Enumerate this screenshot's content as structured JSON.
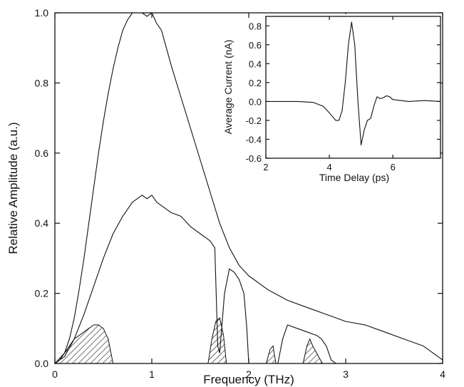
{
  "chart_data": [
    {
      "type": "line",
      "panel": "main",
      "xlabel": "Frequency (THz)",
      "ylabel": "Relative Amplitude (a.u.)",
      "xlim": [
        0,
        4
      ],
      "ylim": [
        0,
        1.0
      ],
      "xticks": [
        0,
        1,
        2,
        3,
        4
      ],
      "xtick_labels": [
        "0",
        "1",
        "2",
        "3",
        "4"
      ],
      "yticks": [
        0.0,
        0.2,
        0.4,
        0.6,
        0.8,
        1.0
      ],
      "ytick_labels": [
        "0.0",
        "0.2",
        "0.4",
        "0.6",
        "0.8",
        "1.0"
      ],
      "grid": false,
      "series": [
        {
          "style": "solid",
          "x": [
            0,
            0.05,
            0.1,
            0.15,
            0.2,
            0.25,
            0.3,
            0.35,
            0.4,
            0.45,
            0.5,
            0.55,
            0.6,
            0.65,
            0.7,
            0.75,
            0.8,
            0.85,
            0.9,
            0.95,
            1.0,
            1.05,
            1.1,
            1.15,
            1.2,
            1.3,
            1.4,
            1.5,
            1.6,
            1.7,
            1.8,
            1.9,
            2.0,
            2.2,
            2.4,
            2.6,
            2.8,
            3.0,
            3.2,
            3.4,
            3.6,
            3.8,
            3.9,
            4.0
          ],
          "y": [
            0.0,
            0.01,
            0.03,
            0.07,
            0.13,
            0.21,
            0.3,
            0.4,
            0.5,
            0.6,
            0.69,
            0.77,
            0.84,
            0.9,
            0.95,
            0.98,
            1.0,
            1.0,
            1.01,
            0.99,
            1.0,
            0.97,
            0.95,
            0.9,
            0.85,
            0.76,
            0.67,
            0.58,
            0.49,
            0.4,
            0.33,
            0.28,
            0.25,
            0.21,
            0.18,
            0.16,
            0.14,
            0.12,
            0.11,
            0.09,
            0.07,
            0.05,
            0.03,
            0.01
          ]
        },
        {
          "style": "solid",
          "x": [
            0,
            0.1,
            0.2,
            0.3,
            0.4,
            0.5,
            0.6,
            0.7,
            0.8,
            0.85,
            0.9,
            0.95,
            1.0,
            1.05,
            1.1,
            1.2,
            1.3,
            1.4,
            1.5,
            1.55,
            1.6,
            1.65,
            1.68,
            1.7,
            1.75,
            1.8,
            1.85,
            1.9,
            1.95,
            1.98,
            2.0,
            2.05,
            2.1,
            2.2,
            2.3,
            2.35,
            2.4,
            2.5,
            2.6,
            2.7,
            2.75,
            2.8,
            2.85,
            2.9,
            4.0
          ],
          "y": [
            0.0,
            0.02,
            0.07,
            0.14,
            0.22,
            0.3,
            0.37,
            0.42,
            0.46,
            0.47,
            0.48,
            0.47,
            0.48,
            0.46,
            0.45,
            0.43,
            0.42,
            0.39,
            0.37,
            0.36,
            0.35,
            0.33,
            0.05,
            0.03,
            0.2,
            0.27,
            0.26,
            0.24,
            0.2,
            0.1,
            0.0,
            0.0,
            0.0,
            0.0,
            0.0,
            0.07,
            0.11,
            0.1,
            0.09,
            0.08,
            0.07,
            0.05,
            0.01,
            0.0,
            0.0
          ]
        }
      ],
      "shaded_regions": [
        {
          "x": [
            0.0,
            0.1,
            0.2,
            0.3,
            0.4,
            0.45,
            0.5,
            0.55,
            0.6
          ],
          "y": [
            0.0,
            0.03,
            0.07,
            0.09,
            0.11,
            0.11,
            0.1,
            0.07,
            0.0
          ]
        },
        {
          "x": [
            1.58,
            1.62,
            1.66,
            1.7,
            1.74,
            1.77
          ],
          "y": [
            0.0,
            0.07,
            0.12,
            0.13,
            0.08,
            0.0
          ]
        },
        {
          "x": [
            2.18,
            2.22,
            2.25,
            2.28
          ],
          "y": [
            0.0,
            0.04,
            0.05,
            0.0
          ]
        },
        {
          "x": [
            2.56,
            2.6,
            2.63,
            2.66,
            2.7,
            2.72,
            2.76
          ],
          "y": [
            0.0,
            0.05,
            0.07,
            0.05,
            0.03,
            0.02,
            0.0
          ]
        }
      ]
    },
    {
      "type": "line",
      "panel": "inset",
      "xlabel": "Time Delay (ps)",
      "ylabel": "Average Current (nA)",
      "xlim": [
        2,
        7.5
      ],
      "ylim": [
        -0.6,
        0.9
      ],
      "xticks": [
        2,
        4,
        6
      ],
      "xtick_labels": [
        "2",
        "4",
        "6"
      ],
      "yticks": [
        -0.6,
        -0.4,
        -0.2,
        0.0,
        0.2,
        0.4,
        0.6,
        0.8
      ],
      "ytick_labels": [
        "-0.6",
        "-0.4",
        "-0.2",
        "0.0",
        "0.2",
        "0.4",
        "0.6",
        "0.8"
      ],
      "grid": false,
      "series": [
        {
          "style": "solid",
          "x": [
            2.0,
            3.0,
            3.5,
            3.8,
            4.0,
            4.2,
            4.3,
            4.4,
            4.5,
            4.6,
            4.7,
            4.8,
            4.9,
            5.0,
            5.1,
            5.2,
            5.3,
            5.4,
            5.5,
            5.6,
            5.7,
            5.8,
            5.9,
            6.0,
            6.5,
            7.0,
            7.5
          ],
          "y": [
            0.0,
            0.0,
            -0.01,
            -0.05,
            -0.12,
            -0.2,
            -0.2,
            -0.1,
            0.2,
            0.6,
            0.84,
            0.6,
            0.0,
            -0.46,
            -0.3,
            -0.2,
            -0.18,
            -0.05,
            0.05,
            0.03,
            0.04,
            0.06,
            0.05,
            0.02,
            0.0,
            0.01,
            0.0
          ]
        }
      ]
    }
  ]
}
